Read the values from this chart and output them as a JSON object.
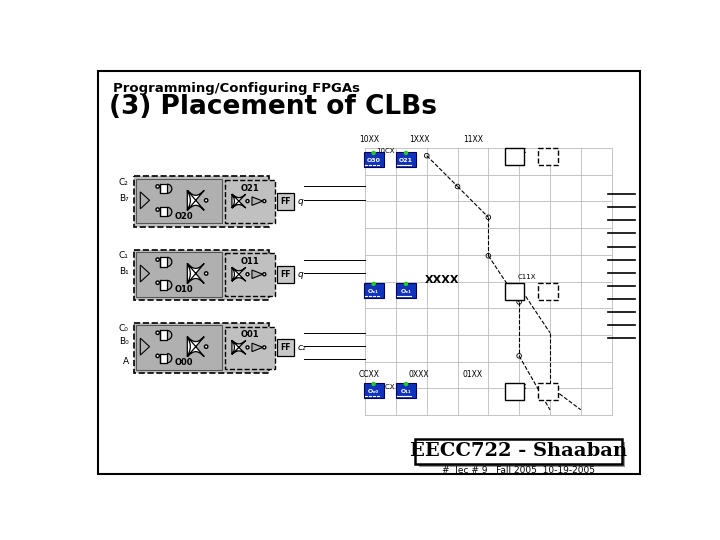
{
  "title_small": "Programming/Configuring FPGAs",
  "title_large": "(3) Placement of CLBs",
  "footer_main": "EECC722 - Shaaban",
  "footer_sub": "#  lec # 9   Fall 2005  10-19-2005",
  "bg_color": "#ffffff",
  "border_color": "#000000"
}
